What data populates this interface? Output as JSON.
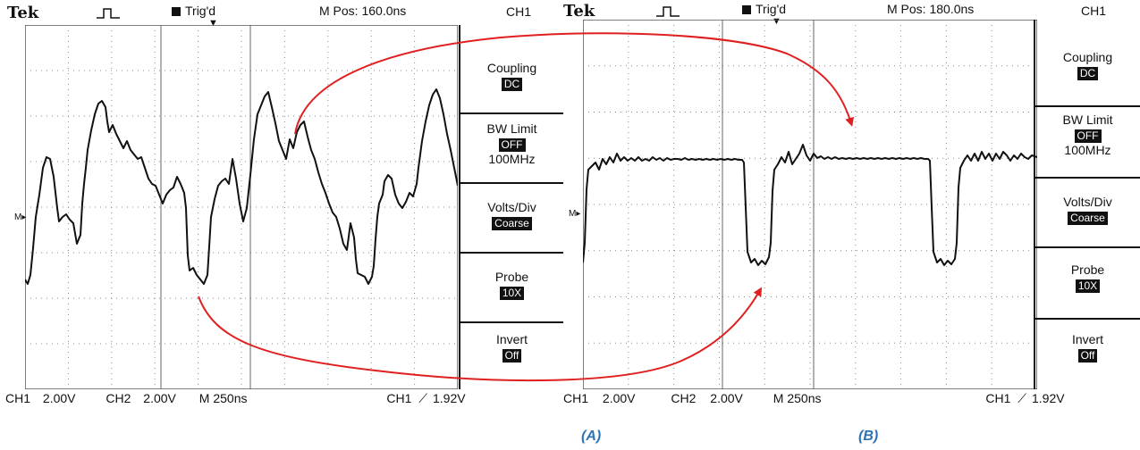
{
  "panel_a": {
    "brand": "Tek",
    "trigger_status": "Trig'd",
    "m_pos": "M Pos: 160.0ns",
    "channel": "CH1",
    "menu": [
      {
        "title": "Coupling",
        "value": "DC"
      },
      {
        "title": "BW Limit",
        "value": "OFF",
        "sub": "100MHz"
      },
      {
        "title": "Volts/Div",
        "value": "Coarse"
      },
      {
        "title": "Probe",
        "value": "10X"
      },
      {
        "title": "Invert",
        "value": "Off"
      }
    ],
    "footer": {
      "ch1": "CH1",
      "ch1_scale": "2.00V",
      "ch2": "CH2",
      "ch2_scale": "2.00V",
      "timebase": "M 250ns",
      "trig_ch": "CH1",
      "trig_level": "1.92V"
    },
    "caption": "(A)"
  },
  "panel_b": {
    "brand": "Tek",
    "trigger_status": "Trig'd",
    "m_pos": "M Pos: 180.0ns",
    "channel": "CH1",
    "menu": [
      {
        "title": "Coupling",
        "value": "DC"
      },
      {
        "title": "BW Limit",
        "value": "OFF",
        "sub": "100MHz"
      },
      {
        "title": "Volts/Div",
        "value": "Coarse"
      },
      {
        "title": "Probe",
        "value": "10X"
      },
      {
        "title": "Invert",
        "value": "Off"
      }
    ],
    "footer": {
      "ch1": "CH1",
      "ch1_scale": "2.00V",
      "ch2": "CH2",
      "ch2_scale": "2.00V",
      "timebase": "M 250ns",
      "trig_ch": "CH1",
      "trig_level": "1.92V"
    },
    "caption": "(B)"
  },
  "colors": {
    "annotation": "#e02020",
    "caption": "#2e74b5",
    "trace": "#111111"
  },
  "icons": [
    "pulse-icon",
    "trigger-square-icon",
    "trigger-position-arrow-icon",
    "ground-marker-icon",
    "trigger-edge-icon"
  ]
}
